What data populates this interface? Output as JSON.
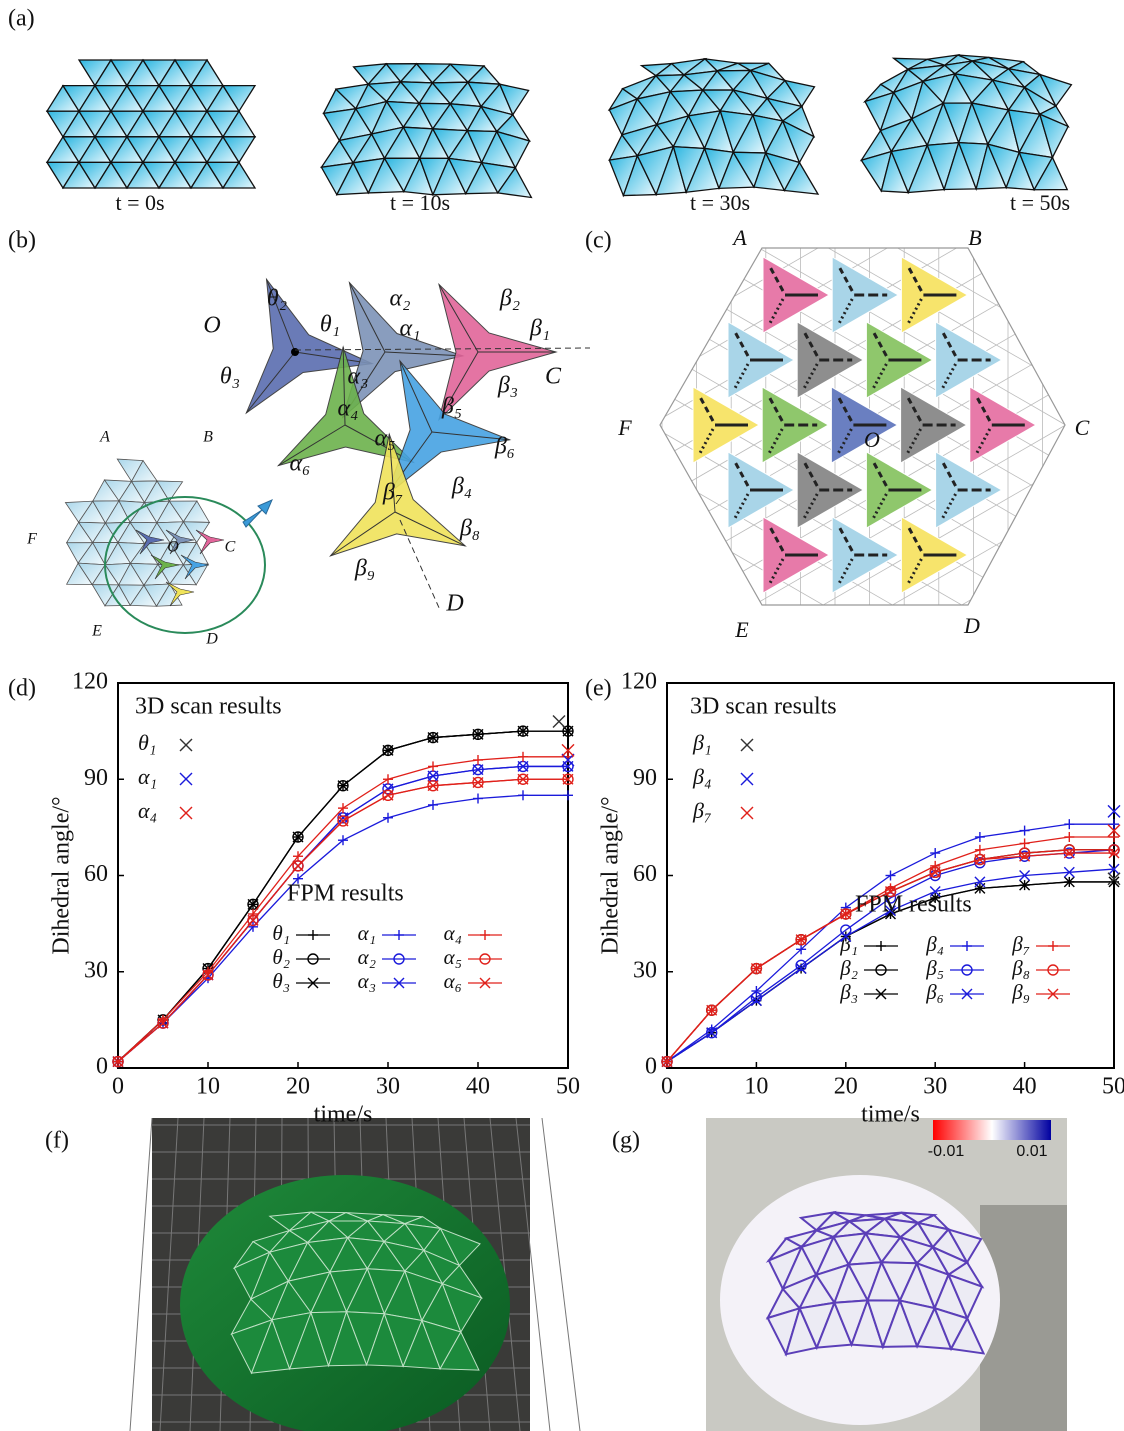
{
  "panels": {
    "a": {
      "label": "(a)",
      "times": [
        "t = 0s",
        "t = 10s",
        "t = 30s",
        "t = 50s"
      ]
    },
    "b": {
      "label": "(b)",
      "labels": [
        "O",
        "θ₂",
        "θ₁",
        "θ₃",
        "α₂",
        "α₁",
        "α₃",
        "β₂",
        "β₁",
        "β₃",
        "C",
        "α₄",
        "α₅",
        "α₆",
        "β₅",
        "β₆",
        "β₄",
        "β₇",
        "β₈",
        "β₉",
        "D",
        "A",
        "B",
        "F",
        "O",
        "C",
        "E",
        "D"
      ]
    },
    "c": {
      "label": "(c)",
      "labels": [
        "A",
        "B",
        "F",
        "O",
        "C",
        "E",
        "D"
      ]
    },
    "f": {
      "label": "(f)"
    },
    "g": {
      "label": "(g)",
      "colorbar": [
        "-0.01",
        "0.01"
      ]
    }
  },
  "chart_data": [
    {
      "type": "line",
      "panel_label": "(d)",
      "xlabel": "time/s",
      "ylabel": "Dihedral angle/°",
      "annotations": [
        "3D scan results",
        "FPM results"
      ],
      "xlim": [
        0,
        50
      ],
      "xticks": [
        0,
        10,
        20,
        30,
        40,
        50
      ],
      "ylim": [
        0,
        120
      ],
      "yticks": [
        0,
        30,
        60,
        90,
        120
      ],
      "x": [
        0,
        5,
        10,
        15,
        20,
        25,
        30,
        35,
        40,
        45,
        50
      ],
      "series": [
        {
          "name": "θ₁",
          "color": "#000000",
          "marker": "+",
          "values": [
            2,
            15,
            31,
            51,
            72,
            88,
            99,
            103,
            104,
            105,
            105
          ]
        },
        {
          "name": "θ₂",
          "color": "#000000",
          "marker": "o",
          "values": [
            2,
            15,
            31,
            51,
            72,
            88,
            99,
            103,
            104,
            105,
            105
          ]
        },
        {
          "name": "θ₃",
          "color": "#000000",
          "marker": "x",
          "values": [
            2,
            15,
            31,
            51,
            72,
            88,
            99,
            103,
            104,
            105,
            105
          ]
        },
        {
          "name": "α₁",
          "color": "#1a1adb",
          "marker": "+",
          "values": [
            2,
            14,
            28,
            44,
            59,
            71,
            78,
            82,
            84,
            85,
            85
          ]
        },
        {
          "name": "α₂",
          "color": "#1a1adb",
          "marker": "o",
          "values": [
            2,
            14,
            29,
            46,
            63,
            78,
            87,
            91,
            93,
            94,
            94
          ]
        },
        {
          "name": "α₃",
          "color": "#1a1adb",
          "marker": "x",
          "values": [
            2,
            14,
            29,
            46,
            63,
            78,
            87,
            91,
            93,
            94,
            94
          ]
        },
        {
          "name": "α₄",
          "color": "#e0201a",
          "marker": "+",
          "values": [
            2,
            15,
            30,
            48,
            66,
            81,
            90,
            94,
            96,
            97,
            97
          ]
        },
        {
          "name": "α₅",
          "color": "#e0201a",
          "marker": "o",
          "values": [
            2,
            14,
            29,
            46,
            63,
            77,
            85,
            88,
            89,
            90,
            90
          ]
        },
        {
          "name": "α₆",
          "color": "#e0201a",
          "marker": "x",
          "values": [
            2,
            14,
            29,
            46,
            63,
            77,
            85,
            88,
            89,
            90,
            90
          ]
        }
      ],
      "scan_points": [
        {
          "name": "θ₁",
          "color": "#333333",
          "x": 49,
          "y": 108
        },
        {
          "name": "α₁",
          "color": "#1a1adb",
          "x": 50,
          "y": 96
        },
        {
          "name": "α₄",
          "color": "#e0201a",
          "x": 50,
          "y": 99
        }
      ]
    },
    {
      "type": "line",
      "panel_label": "(e)",
      "xlabel": "time/s",
      "ylabel": "Dihedral angle/°",
      "annotations": [
        "3D scan results",
        "FPM results"
      ],
      "xlim": [
        0,
        50
      ],
      "xticks": [
        0,
        10,
        20,
        30,
        40,
        50
      ],
      "ylim": [
        0,
        120
      ],
      "yticks": [
        0,
        30,
        60,
        90,
        120
      ],
      "x": [
        0,
        5,
        10,
        15,
        20,
        25,
        30,
        35,
        40,
        45,
        50
      ],
      "series": [
        {
          "name": "β₁",
          "color": "#000000",
          "marker": "+",
          "values": [
            2,
            11,
            21,
            31,
            41,
            48,
            53,
            56,
            57,
            58,
            58
          ]
        },
        {
          "name": "β₂",
          "color": "#000000",
          "marker": "o",
          "values": [
            2,
            18,
            31,
            40,
            48,
            55,
            61,
            65,
            67,
            68,
            68
          ]
        },
        {
          "name": "β₃",
          "color": "#000000",
          "marker": "x",
          "values": [
            2,
            11,
            21,
            31,
            41,
            48,
            53,
            56,
            57,
            58,
            58
          ]
        },
        {
          "name": "β₄",
          "color": "#1a1adb",
          "marker": "+",
          "values": [
            2,
            12,
            24,
            37,
            50,
            60,
            67,
            72,
            74,
            76,
            76
          ]
        },
        {
          "name": "β₅",
          "color": "#1a1adb",
          "marker": "o",
          "values": [
            2,
            11,
            22,
            32,
            43,
            53,
            60,
            64,
            66,
            67,
            68
          ]
        },
        {
          "name": "β₆",
          "color": "#1a1adb",
          "marker": "x",
          "values": [
            2,
            11,
            21,
            31,
            41,
            49,
            55,
            58,
            60,
            61,
            62
          ]
        },
        {
          "name": "β₇",
          "color": "#e0201a",
          "marker": "+",
          "values": [
            2,
            18,
            31,
            40,
            48,
            56,
            63,
            68,
            70,
            72,
            72
          ]
        },
        {
          "name": "β₈",
          "color": "#e0201a",
          "marker": "o",
          "values": [
            2,
            18,
            31,
            40,
            48,
            55,
            61,
            65,
            67,
            68,
            68
          ]
        },
        {
          "name": "β₉",
          "color": "#e0201a",
          "marker": "x",
          "values": [
            2,
            18,
            31,
            40,
            48,
            55,
            61,
            65,
            66,
            67,
            67
          ]
        }
      ],
      "scan_points": [
        {
          "name": "β₁",
          "color": "#333333",
          "x": 50,
          "y": 59
        },
        {
          "name": "β₄",
          "color": "#1a1adb",
          "x": 50,
          "y": 80
        },
        {
          "name": "β₇",
          "color": "#e0201a",
          "x": 50,
          "y": 74
        }
      ]
    }
  ]
}
